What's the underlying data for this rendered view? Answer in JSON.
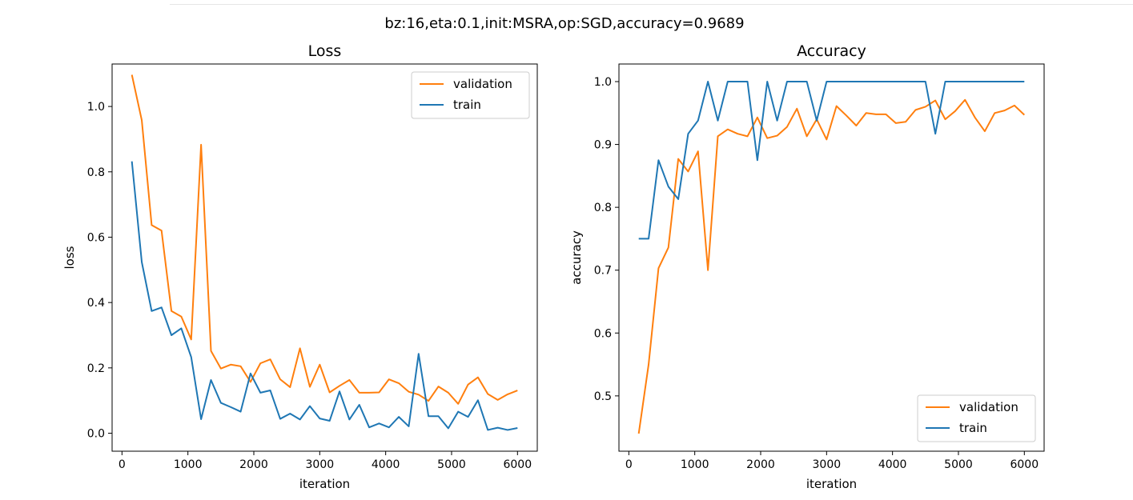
{
  "suptitle": "bz:16,eta:0.1,init:MSRA,op:SGD,accuracy=0.9689",
  "colors": {
    "validation": "#ff7f0e",
    "train": "#1f77b4"
  },
  "chart_data": [
    {
      "type": "line",
      "title": "Loss",
      "xlabel": "iteration",
      "ylabel": "loss",
      "xlim": [
        -150,
        6300
      ],
      "ylim": [
        -0.055,
        1.13
      ],
      "xticks": [
        0,
        1000,
        2000,
        3000,
        4000,
        5000,
        6000
      ],
      "yticks": [
        0.0,
        0.2,
        0.4,
        0.6,
        0.8,
        1.0
      ],
      "ytick_decimals": 1,
      "legend_position": "upper right",
      "x": [
        150,
        300,
        450,
        600,
        750,
        900,
        1050,
        1200,
        1350,
        1500,
        1650,
        1800,
        1950,
        2100,
        2250,
        2400,
        2550,
        2700,
        2850,
        3000,
        3150,
        3300,
        3450,
        3600,
        3750,
        3900,
        4050,
        4200,
        4350,
        4500,
        4650,
        4800,
        4950,
        5100,
        5250,
        5400,
        5550,
        5700,
        5850,
        6000
      ],
      "series": [
        {
          "name": "validation",
          "color": "#ff7f0e",
          "values": [
            1.097,
            0.958,
            0.637,
            0.62,
            0.374,
            0.357,
            0.287,
            0.883,
            0.252,
            0.198,
            0.21,
            0.205,
            0.157,
            0.214,
            0.226,
            0.165,
            0.141,
            0.26,
            0.142,
            0.21,
            0.125,
            0.145,
            0.163,
            0.124,
            0.124,
            0.125,
            0.165,
            0.153,
            0.127,
            0.118,
            0.099,
            0.143,
            0.124,
            0.09,
            0.149,
            0.171,
            0.12,
            0.102,
            0.119,
            0.131
          ]
        },
        {
          "name": "train",
          "color": "#1f77b4",
          "values": [
            0.832,
            0.524,
            0.374,
            0.385,
            0.3,
            0.321,
            0.233,
            0.043,
            0.163,
            0.093,
            0.08,
            0.066,
            0.183,
            0.124,
            0.131,
            0.044,
            0.06,
            0.042,
            0.083,
            0.045,
            0.038,
            0.128,
            0.042,
            0.087,
            0.018,
            0.03,
            0.018,
            0.05,
            0.021,
            0.243,
            0.052,
            0.052,
            0.015,
            0.066,
            0.05,
            0.101,
            0.01,
            0.017,
            0.01,
            0.016
          ]
        }
      ]
    },
    {
      "type": "line",
      "title": "Accuracy",
      "xlabel": "iteration",
      "ylabel": "accuracy",
      "xlim": [
        -150,
        6300
      ],
      "ylim": [
        0.412,
        1.028
      ],
      "xticks": [
        0,
        1000,
        2000,
        3000,
        4000,
        5000,
        6000
      ],
      "yticks": [
        0.5,
        0.6,
        0.7,
        0.8,
        0.9,
        1.0
      ],
      "ytick_decimals": 1,
      "legend_position": "lower right",
      "x": [
        150,
        300,
        450,
        600,
        750,
        900,
        1050,
        1200,
        1350,
        1500,
        1650,
        1800,
        1950,
        2100,
        2250,
        2400,
        2550,
        2700,
        2850,
        3000,
        3150,
        3300,
        3450,
        3600,
        3750,
        3900,
        4050,
        4200,
        4350,
        4500,
        4650,
        4800,
        4950,
        5100,
        5250,
        5400,
        5550,
        5700,
        5850,
        6000
      ],
      "series": [
        {
          "name": "validation",
          "color": "#ff7f0e",
          "values": [
            0.44,
            0.55,
            0.703,
            0.736,
            0.877,
            0.857,
            0.889,
            0.7,
            0.913,
            0.924,
            0.917,
            0.913,
            0.943,
            0.91,
            0.914,
            0.928,
            0.957,
            0.913,
            0.94,
            0.908,
            0.961,
            0.946,
            0.93,
            0.95,
            0.948,
            0.948,
            0.934,
            0.936,
            0.955,
            0.96,
            0.97,
            0.94,
            0.953,
            0.971,
            0.943,
            0.921,
            0.95,
            0.954,
            0.962,
            0.947
          ]
        },
        {
          "name": "train",
          "color": "#1f77b4",
          "values": [
            0.75,
            0.75,
            0.875,
            0.833,
            0.813,
            0.917,
            0.938,
            1.0,
            0.938,
            1.0,
            1.0,
            1.0,
            0.875,
            1.0,
            0.938,
            1.0,
            1.0,
            1.0,
            0.938,
            1.0,
            1.0,
            1.0,
            1.0,
            1.0,
            1.0,
            1.0,
            1.0,
            1.0,
            1.0,
            1.0,
            0.917,
            1.0,
            1.0,
            1.0,
            1.0,
            1.0,
            1.0,
            1.0,
            1.0,
            1.0
          ]
        }
      ]
    }
  ]
}
